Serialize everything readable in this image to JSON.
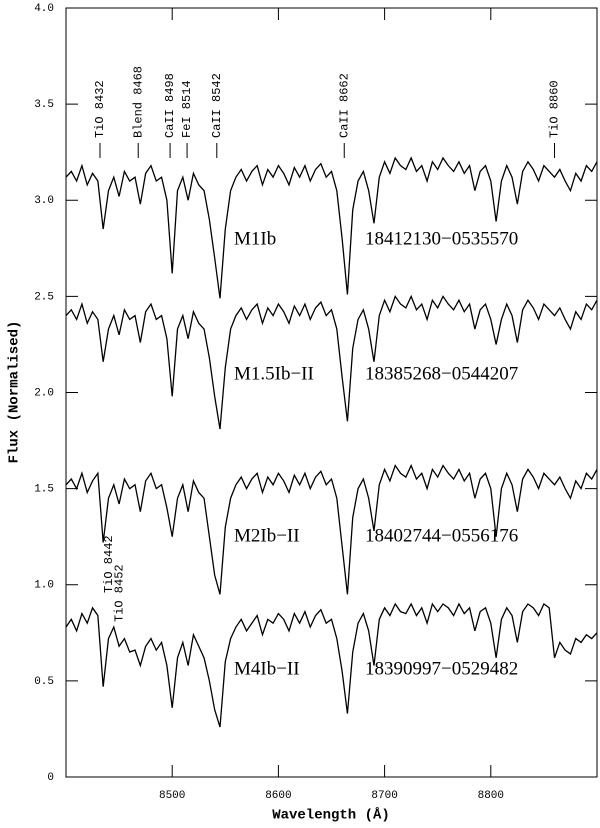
{
  "chart_data": {
    "type": "line",
    "xlabel": "Wavelength (Å)",
    "ylabel": "Flux (Normalised)",
    "xlim": [
      8400,
      8900
    ],
    "ylim": [
      0,
      4
    ],
    "xticks": [
      8500,
      8600,
      8700,
      8800
    ],
    "yticks": [
      0,
      0.5,
      {
        "value": 1,
        "label": "1.0"
      },
      1.5,
      {
        "value": 2,
        "label": "2.0"
      },
      2.5,
      {
        "value": 3,
        "label": "3.0"
      },
      3.5,
      {
        "value": 4,
        "label": "4.0"
      }
    ],
    "x": [
      8400,
      8405,
      8410,
      8415,
      8420,
      8425,
      8430,
      8435,
      8440,
      8445,
      8450,
      8455,
      8460,
      8465,
      8470,
      8475,
      8480,
      8485,
      8490,
      8495,
      8500,
      8505,
      8510,
      8515,
      8520,
      8525,
      8530,
      8535,
      8540,
      8545,
      8550,
      8555,
      8560,
      8565,
      8570,
      8575,
      8580,
      8585,
      8590,
      8595,
      8600,
      8605,
      8610,
      8615,
      8620,
      8625,
      8630,
      8635,
      8640,
      8645,
      8650,
      8655,
      8660,
      8665,
      8670,
      8675,
      8680,
      8685,
      8690,
      8695,
      8700,
      8705,
      8710,
      8715,
      8720,
      8725,
      8730,
      8735,
      8740,
      8745,
      8750,
      8755,
      8760,
      8765,
      8770,
      8775,
      8780,
      8785,
      8790,
      8795,
      8800,
      8805,
      8810,
      8815,
      8820,
      8825,
      8830,
      8835,
      8840,
      8845,
      8850,
      8855,
      8860,
      8865,
      8870,
      8875,
      8880,
      8885,
      8890,
      8895,
      8900
    ],
    "series": [
      {
        "name": "M1Ib",
        "label": "18412130−0535570",
        "color": "#000000",
        "values": [
          3.12,
          3.15,
          3.1,
          3.18,
          3.08,
          3.14,
          3.1,
          2.85,
          3.05,
          3.12,
          3.02,
          3.15,
          3.1,
          3.12,
          2.98,
          3.14,
          3.18,
          3.1,
          3.12,
          3.0,
          2.62,
          3.05,
          3.12,
          3.0,
          3.14,
          3.08,
          3.05,
          2.9,
          2.7,
          2.49,
          2.85,
          3.05,
          3.12,
          3.16,
          3.1,
          3.15,
          3.18,
          3.08,
          3.16,
          3.12,
          3.18,
          3.14,
          3.08,
          3.17,
          3.12,
          3.18,
          3.1,
          3.16,
          3.19,
          3.12,
          3.15,
          3.05,
          2.8,
          2.51,
          2.95,
          3.1,
          3.15,
          3.05,
          2.88,
          3.12,
          3.2,
          3.14,
          3.22,
          3.18,
          3.16,
          3.22,
          3.15,
          3.18,
          3.1,
          3.2,
          3.16,
          3.22,
          3.18,
          3.15,
          3.2,
          3.14,
          3.18,
          3.05,
          3.15,
          3.18,
          3.1,
          2.89,
          3.1,
          3.18,
          3.12,
          2.98,
          3.15,
          3.2,
          3.16,
          3.1,
          3.18,
          3.15,
          3.12,
          3.16,
          3.1,
          3.05,
          3.14,
          3.1,
          3.18,
          3.15,
          3.2
        ]
      },
      {
        "name": "M1.5Ib−II",
        "label": "18385268−0544207",
        "color": "#000000",
        "values": [
          2.4,
          2.43,
          2.38,
          2.46,
          2.36,
          2.42,
          2.38,
          2.16,
          2.33,
          2.4,
          2.3,
          2.43,
          2.38,
          2.4,
          2.26,
          2.42,
          2.46,
          2.38,
          2.4,
          2.28,
          1.98,
          2.33,
          2.4,
          2.28,
          2.42,
          2.36,
          2.33,
          2.18,
          1.98,
          1.81,
          2.13,
          2.33,
          2.4,
          2.44,
          2.38,
          2.43,
          2.46,
          2.36,
          2.44,
          2.4,
          2.46,
          2.42,
          2.36,
          2.45,
          2.4,
          2.46,
          2.38,
          2.44,
          2.47,
          2.4,
          2.43,
          2.33,
          2.08,
          1.85,
          2.23,
          2.38,
          2.43,
          2.33,
          2.16,
          2.4,
          2.48,
          2.42,
          2.5,
          2.46,
          2.44,
          2.5,
          2.43,
          2.46,
          2.38,
          2.48,
          2.44,
          2.5,
          2.46,
          2.43,
          2.48,
          2.42,
          2.46,
          2.33,
          2.43,
          2.46,
          2.38,
          2.25,
          2.38,
          2.46,
          2.4,
          2.26,
          2.43,
          2.48,
          2.44,
          2.38,
          2.46,
          2.43,
          2.4,
          2.44,
          2.38,
          2.33,
          2.42,
          2.38,
          2.46,
          2.43,
          2.48
        ]
      },
      {
        "name": "M2Ib−II",
        "label": "18402744−0556176",
        "color": "#000000",
        "values": [
          1.52,
          1.55,
          1.5,
          1.58,
          1.48,
          1.54,
          1.58,
          1.22,
          1.45,
          1.52,
          1.42,
          1.55,
          1.5,
          1.52,
          1.38,
          1.54,
          1.58,
          1.5,
          1.52,
          1.4,
          1.25,
          1.45,
          1.52,
          1.38,
          1.54,
          1.48,
          1.45,
          1.25,
          1.05,
          0.95,
          1.3,
          1.45,
          1.52,
          1.56,
          1.5,
          1.55,
          1.58,
          1.48,
          1.56,
          1.52,
          1.58,
          1.54,
          1.48,
          1.57,
          1.52,
          1.58,
          1.5,
          1.56,
          1.59,
          1.52,
          1.55,
          1.45,
          1.2,
          0.95,
          1.35,
          1.5,
          1.55,
          1.45,
          1.28,
          1.52,
          1.6,
          1.54,
          1.62,
          1.58,
          1.56,
          1.62,
          1.55,
          1.58,
          1.5,
          1.6,
          1.56,
          1.62,
          1.58,
          1.55,
          1.6,
          1.54,
          1.58,
          1.45,
          1.55,
          1.58,
          1.5,
          1.25,
          1.5,
          1.58,
          1.52,
          1.38,
          1.55,
          1.6,
          1.56,
          1.5,
          1.58,
          1.55,
          1.52,
          1.56,
          1.5,
          1.45,
          1.54,
          1.5,
          1.58,
          1.55,
          1.6
        ]
      },
      {
        "name": "M4Ib−II",
        "label": "18390997−0529482",
        "color": "#000000",
        "values": [
          0.78,
          0.82,
          0.76,
          0.85,
          0.8,
          0.88,
          0.84,
          0.47,
          0.72,
          0.78,
          0.68,
          0.72,
          0.65,
          0.66,
          0.58,
          0.68,
          0.72,
          0.66,
          0.7,
          0.58,
          0.36,
          0.62,
          0.7,
          0.58,
          0.74,
          0.68,
          0.62,
          0.5,
          0.35,
          0.26,
          0.6,
          0.72,
          0.78,
          0.82,
          0.76,
          0.8,
          0.84,
          0.74,
          0.82,
          0.8,
          0.85,
          0.82,
          0.76,
          0.85,
          0.8,
          0.86,
          0.78,
          0.84,
          0.87,
          0.8,
          0.82,
          0.72,
          0.55,
          0.33,
          0.65,
          0.8,
          0.85,
          0.76,
          0.58,
          0.82,
          0.88,
          0.84,
          0.9,
          0.86,
          0.85,
          0.9,
          0.84,
          0.88,
          0.8,
          0.9,
          0.86,
          0.9,
          0.88,
          0.84,
          0.9,
          0.85,
          0.88,
          0.76,
          0.86,
          0.88,
          0.8,
          0.62,
          0.82,
          0.88,
          0.84,
          0.7,
          0.86,
          0.9,
          0.88,
          0.84,
          0.9,
          0.88,
          0.62,
          0.7,
          0.66,
          0.64,
          0.72,
          0.7,
          0.74,
          0.72,
          0.75
        ]
      }
    ],
    "annotations": [
      {
        "text": "TiO  8432",
        "x": 8432
      },
      {
        "text": "Blend 8468",
        "x": 8468
      },
      {
        "text": "CaII 8498",
        "x": 8498
      },
      {
        "text": "FeI 8514",
        "x": 8514
      },
      {
        "text": "CaII 8542",
        "x": 8542
      },
      {
        "text": "CaII 8662",
        "x": 8662
      },
      {
        "text": "TiO  8860",
        "x": 8860
      }
    ],
    "lower_annotations": [
      {
        "text": "TiO  8442",
        "x": 8442
      },
      {
        "text": "TiO  8452",
        "x": 8452
      }
    ]
  }
}
